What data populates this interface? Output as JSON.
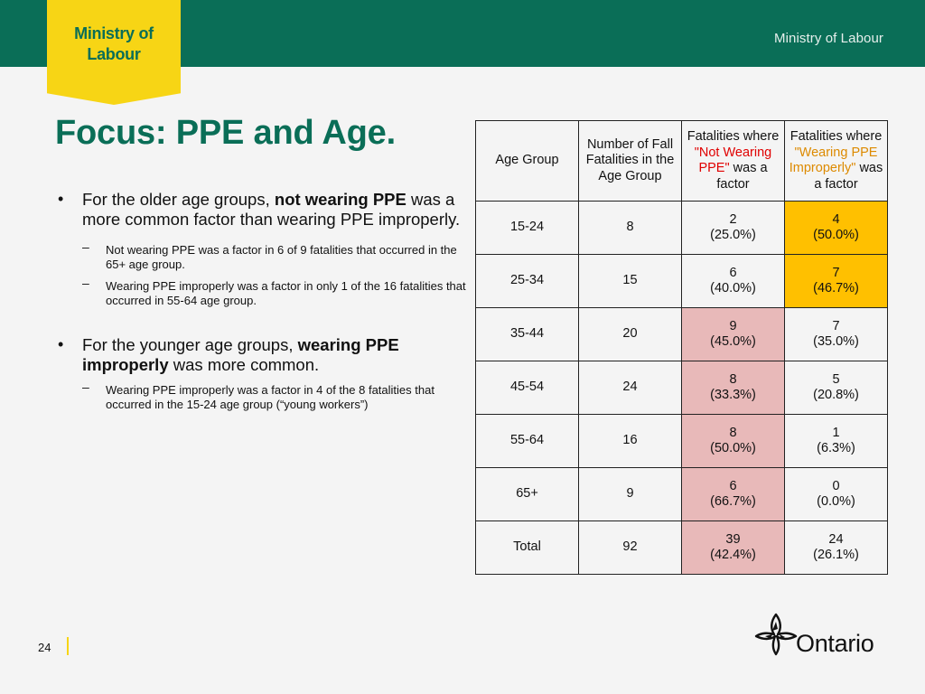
{
  "header": {
    "banner_line1": "Ministry of",
    "banner_line2": "Labour",
    "right_label": "Ministry of Labour"
  },
  "title": "Focus: PPE and Age.",
  "bullets": [
    {
      "pre": "For the older age groups, ",
      "bold": "not wearing PPE",
      "post": " was a more common factor than wearing PPE improperly.",
      "subs": [
        "Not wearing PPE was a factor in 6 of 9 fatalities that occurred in the 65+ age group.",
        "Wearing PPE improperly was a factor in only 1 of the 16 fatalities that occurred in 55-64 age group."
      ]
    },
    {
      "pre": "For the younger age groups, ",
      "bold": "wearing PPE improperly",
      "post": " was more common.",
      "subs": [
        "Wearing PPE improperly was a factor in 4 of the 8 fatalities that occurred in the 15-24 age group (“young workers”)"
      ]
    }
  ],
  "table": {
    "headers": {
      "age_group": "Age Group",
      "count": "Number of Fall Fatalities in the Age Group",
      "nw_pre": "Fatalities where",
      "nw_quote": "\"Not Wearing PPE\"",
      "nw_post": "was a factor",
      "wi_pre": "Fatalities where",
      "wi_quote": "\"Wearing PPE Improperly\"",
      "wi_post": "was a  factor"
    },
    "rows": [
      {
        "age": "15-24",
        "count": "8",
        "nw_n": "2",
        "nw_p": "(25.0%)",
        "wi_n": "4",
        "wi_p": "(50.0%)"
      },
      {
        "age": "25-34",
        "count": "15",
        "nw_n": "6",
        "nw_p": "(40.0%)",
        "wi_n": "7",
        "wi_p": "(46.7%)"
      },
      {
        "age": "35-44",
        "count": "20",
        "nw_n": "9",
        "nw_p": "(45.0%)",
        "wi_n": "7",
        "wi_p": "(35.0%)"
      },
      {
        "age": "45-54",
        "count": "24",
        "nw_n": "8",
        "nw_p": "(33.3%)",
        "wi_n": "5",
        "wi_p": "(20.8%)"
      },
      {
        "age": "55-64",
        "count": "16",
        "nw_n": "8",
        "nw_p": "(50.0%)",
        "wi_n": "1",
        "wi_p": "(6.3%)"
      },
      {
        "age": "65+",
        "count": "9",
        "nw_n": "6",
        "nw_p": "(66.7%)",
        "wi_n": "0",
        "wi_p": "(0.0%)"
      },
      {
        "age": "Total",
        "count": "92",
        "nw_n": "39",
        "nw_p": "(42.4%)",
        "wi_n": "24",
        "wi_p": "(26.1%)"
      }
    ]
  },
  "footer": {
    "page_number": "24",
    "logo_text": "Ontario"
  },
  "colors": {
    "brand_green": "#0a6e57",
    "banner_yellow": "#f7d515",
    "highlight_pink": "#e8b9b9",
    "highlight_gold": "#ffc000",
    "quote_red": "#e00000",
    "quote_orange": "#dd8a00"
  }
}
